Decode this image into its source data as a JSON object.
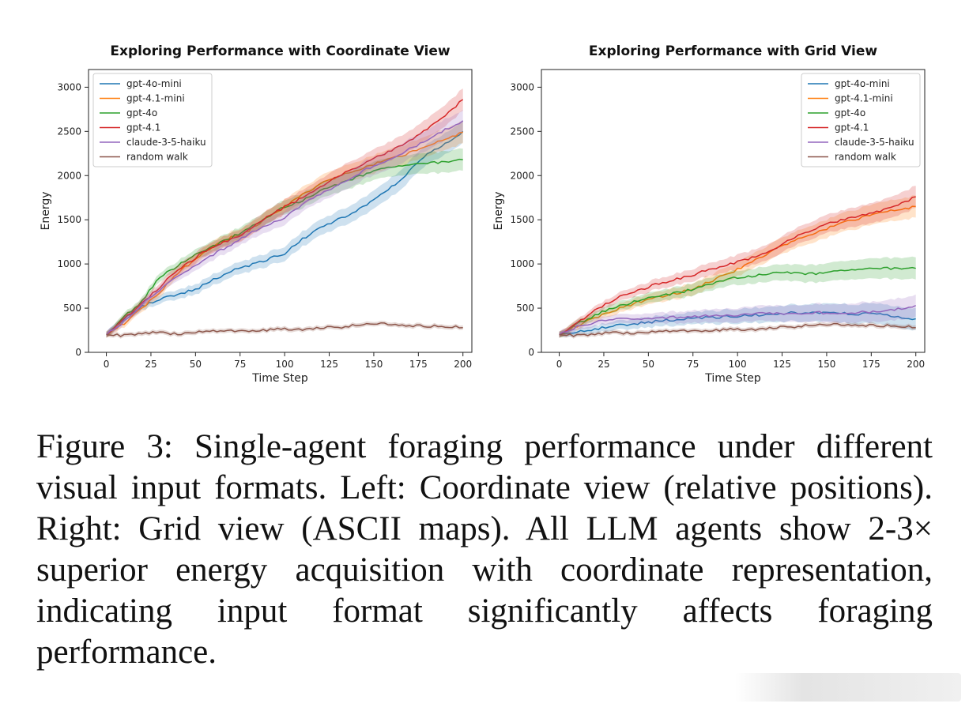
{
  "caption": "Figure 3: Single-agent foraging performance under different visual input formats. Left: Coordinate view (relative positions). Right: Grid view (ASCII maps). All LLM agents show 2-3× superior energy acquisition with coordinate representation, indicating input format significantly affects foraging performance.",
  "chart_data": [
    {
      "type": "line",
      "title": "Exploring Performance with Coordinate View",
      "xlabel": "Time Step",
      "ylabel": "Energy",
      "xlim": [
        -10,
        205
      ],
      "ylim": [
        0,
        3200
      ],
      "xticks": [
        0,
        25,
        50,
        75,
        100,
        125,
        150,
        175,
        200
      ],
      "yticks": [
        0,
        500,
        1000,
        1500,
        2000,
        2500,
        3000
      ],
      "legend": "top-left",
      "grid": false,
      "x": [
        0,
        10,
        20,
        30,
        40,
        50,
        60,
        70,
        80,
        90,
        100,
        110,
        120,
        130,
        140,
        150,
        160,
        170,
        180,
        190,
        200
      ],
      "series": [
        {
          "name": "gpt-4o-mini",
          "color": "#1f77b4",
          "values": [
            200,
            380,
            520,
            600,
            660,
            710,
            820,
            920,
            980,
            1050,
            1120,
            1280,
            1420,
            1500,
            1600,
            1720,
            1870,
            2050,
            2240,
            2360,
            2500
          ]
        },
        {
          "name": "gpt-4.1-mini",
          "color": "#ff7f0e",
          "values": [
            200,
            330,
            500,
            680,
            900,
            1050,
            1200,
            1300,
            1380,
            1520,
            1650,
            1780,
            1900,
            1990,
            2050,
            2130,
            2190,
            2260,
            2330,
            2420,
            2490
          ]
        },
        {
          "name": "gpt-4o",
          "color": "#2ca02c",
          "values": [
            200,
            400,
            580,
            860,
            980,
            1100,
            1200,
            1300,
            1400,
            1520,
            1650,
            1720,
            1820,
            1900,
            1980,
            2050,
            2090,
            2120,
            2140,
            2160,
            2180
          ]
        },
        {
          "name": "gpt-4.1",
          "color": "#d62728",
          "values": [
            200,
            380,
            550,
            740,
            940,
            1070,
            1200,
            1280,
            1380,
            1540,
            1640,
            1750,
            1880,
            1990,
            2090,
            2190,
            2280,
            2390,
            2530,
            2680,
            2860
          ]
        },
        {
          "name": "claude-3-5-haiku",
          "color": "#9467bd",
          "values": [
            200,
            350,
            540,
            700,
            870,
            980,
            1110,
            1220,
            1340,
            1440,
            1530,
            1670,
            1790,
            1900,
            2010,
            2110,
            2200,
            2300,
            2400,
            2520,
            2620
          ]
        },
        {
          "name": "random walk",
          "color": "#8c564b",
          "values": [
            200,
            190,
            215,
            225,
            210,
            235,
            240,
            245,
            235,
            250,
            265,
            255,
            275,
            285,
            305,
            330,
            320,
            305,
            295,
            290,
            280
          ]
        }
      ]
    },
    {
      "type": "line",
      "title": "Exploring Performance with Grid View",
      "xlabel": "Time Step",
      "ylabel": "Energy",
      "xlim": [
        -10,
        205
      ],
      "ylim": [
        0,
        3200
      ],
      "xticks": [
        0,
        25,
        50,
        75,
        100,
        125,
        150,
        175,
        200
      ],
      "yticks": [
        0,
        500,
        1000,
        1500,
        2000,
        2500,
        3000
      ],
      "legend": "top-right",
      "grid": false,
      "x": [
        0,
        10,
        20,
        30,
        40,
        50,
        60,
        70,
        80,
        90,
        100,
        110,
        120,
        130,
        140,
        150,
        160,
        170,
        180,
        190,
        200
      ],
      "series": [
        {
          "name": "gpt-4o-mini",
          "color": "#1f77b4",
          "values": [
            200,
            230,
            260,
            300,
            320,
            340,
            360,
            375,
            390,
            400,
            410,
            420,
            435,
            445,
            450,
            445,
            440,
            435,
            430,
            400,
            380
          ]
        },
        {
          "name": "gpt-4.1-mini",
          "color": "#ff7f0e",
          "values": [
            200,
            300,
            390,
            470,
            540,
            600,
            640,
            690,
            760,
            850,
            940,
            1040,
            1150,
            1250,
            1320,
            1400,
            1470,
            1530,
            1580,
            1620,
            1650
          ]
        },
        {
          "name": "gpt-4o",
          "color": "#2ca02c",
          "values": [
            200,
            320,
            420,
            510,
            560,
            610,
            650,
            690,
            740,
            800,
            850,
            870,
            890,
            900,
            890,
            900,
            920,
            940,
            950,
            955,
            950
          ]
        },
        {
          "name": "gpt-4.1",
          "color": "#d62728",
          "values": [
            200,
            330,
            470,
            590,
            680,
            740,
            800,
            850,
            910,
            970,
            1020,
            1080,
            1170,
            1280,
            1370,
            1450,
            1500,
            1550,
            1600,
            1670,
            1760
          ]
        },
        {
          "name": "claude-3-5-haiku",
          "color": "#9467bd",
          "values": [
            200,
            290,
            340,
            370,
            385,
            380,
            395,
            400,
            410,
            420,
            425,
            435,
            440,
            445,
            450,
            445,
            450,
            455,
            460,
            490,
            530
          ]
        },
        {
          "name": "random walk",
          "color": "#8c564b",
          "values": [
            200,
            190,
            205,
            225,
            220,
            235,
            240,
            245,
            235,
            250,
            260,
            255,
            275,
            290,
            305,
            320,
            315,
            310,
            300,
            295,
            280
          ]
        }
      ]
    }
  ]
}
